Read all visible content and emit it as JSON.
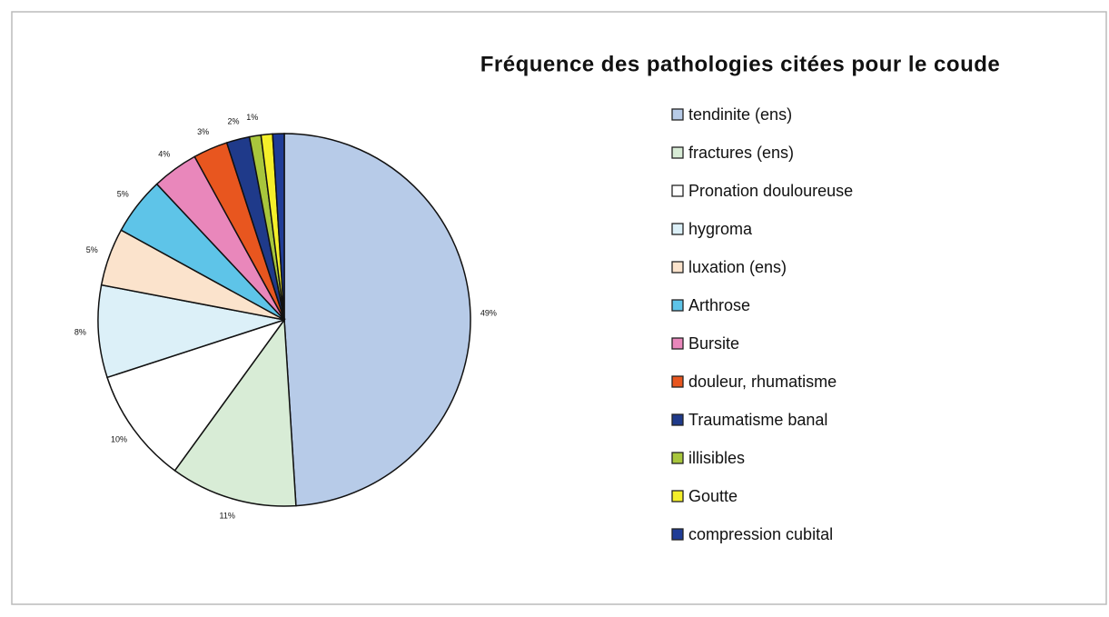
{
  "chart_data": {
    "type": "pie",
    "title": "Fréquence des pathologies citées pour le coude",
    "categories": [
      "tendinite (ens)",
      "fractures (ens)",
      "Pronation douloureuse",
      "hygroma",
      "luxation (ens)",
      "Arthrose",
      "Bursite",
      "douleur, rhumatisme",
      "Traumatisme banal",
      "illisibles",
      "Goutte",
      "compression cubital"
    ],
    "values": [
      49,
      11,
      10,
      8,
      5,
      5,
      4,
      3,
      2,
      1,
      1,
      1
    ],
    "value_labels": [
      "49%",
      "11%",
      "10%",
      "8%",
      "5%",
      "5%",
      "4%",
      "3%",
      "2%",
      "1%",
      null,
      null
    ],
    "colors": [
      "#b7cbe8",
      "#d8ecd6",
      "#ffffff",
      "#dcf0f8",
      "#fbe3cc",
      "#5ec4e8",
      "#e987bb",
      "#e8561f",
      "#1f3a8a",
      "#a8c63c",
      "#f4ef2a",
      "#1f3c96"
    ]
  }
}
